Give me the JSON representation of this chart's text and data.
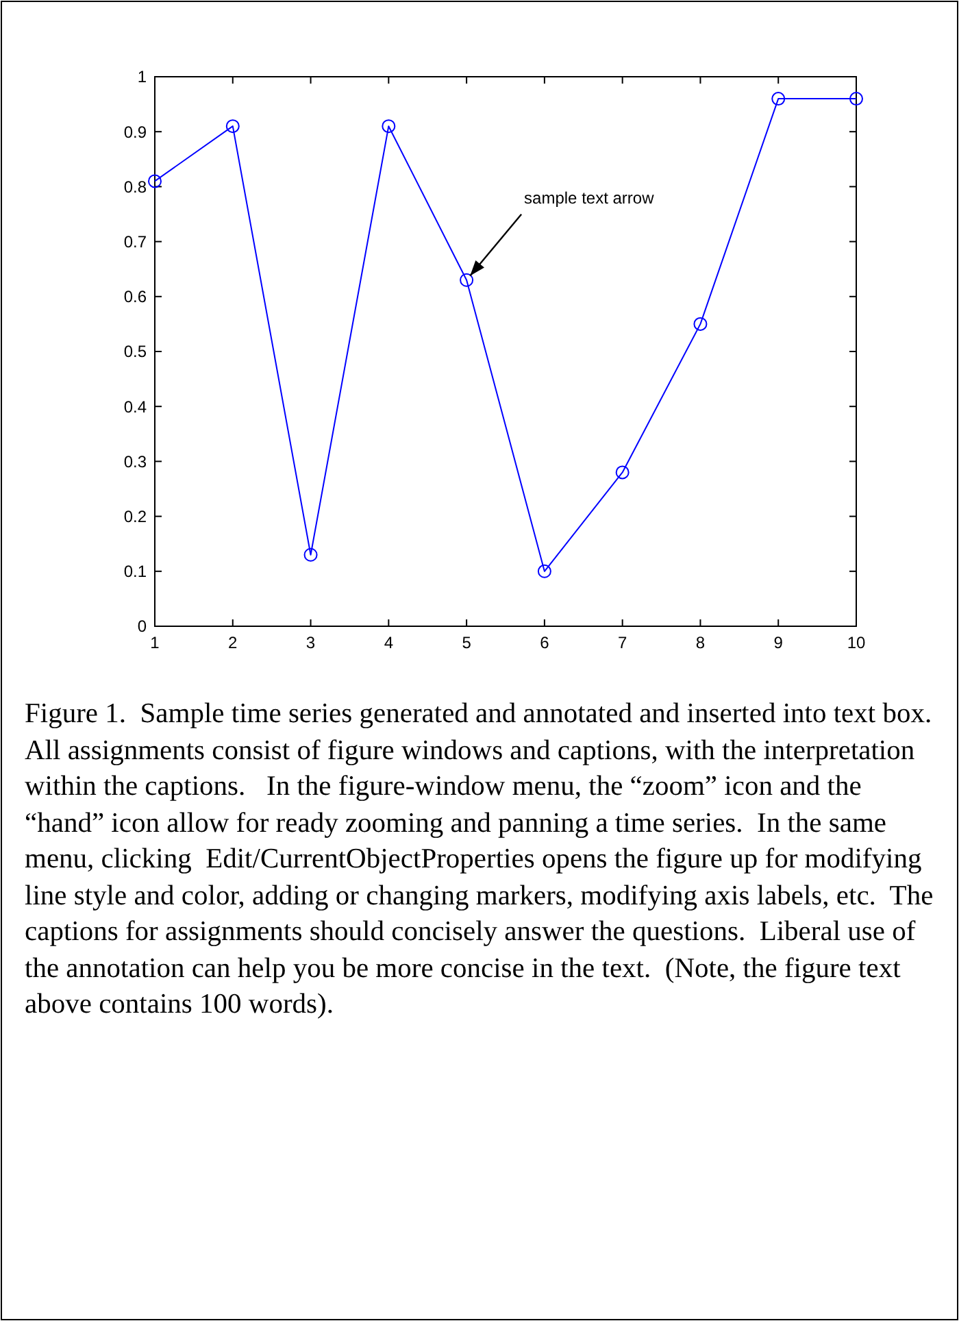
{
  "chart_data": {
    "type": "line",
    "x": [
      1,
      2,
      3,
      4,
      5,
      6,
      7,
      8,
      9,
      10
    ],
    "series": [
      {
        "color": "#0000ff",
        "values": [
          0.81,
          0.91,
          0.13,
          0.91,
          0.63,
          0.1,
          0.28,
          0.55,
          0.96,
          0.96
        ]
      }
    ],
    "xlim": [
      1,
      10
    ],
    "xticks": [
      1,
      2,
      3,
      4,
      5,
      6,
      7,
      8,
      9,
      10
    ],
    "ylim": [
      0,
      1
    ],
    "yticks": [
      0,
      0.1,
      0.2,
      0.3,
      0.4,
      0.5,
      0.6,
      0.7,
      0.8,
      0.9,
      1
    ],
    "marker": "circle",
    "line_style": "solid",
    "annotations": [
      {
        "text": "sample text arrow",
        "x": 5,
        "y": 0.63
      },
      "Figure 1.  Sample time series generated and annotated and inserted into text box.  All assignments consist of figure windows and captions, with the interpretation within the captions.   In the figure-window menu, the “zoom” icon and the “hand” icon allow for ready zooming and panning a time series.  In the same menu, clicking  Edit/CurrentObjectProperties opens the figure up for modifying line style and color, adding or changing markers, modifying axis labels, etc.  The captions for assignments should concisely answer the questions.  Liberal use of the annotation can help you be more concise in the text.  (Note, the figure text above contains 100 words)."
    ]
  }
}
